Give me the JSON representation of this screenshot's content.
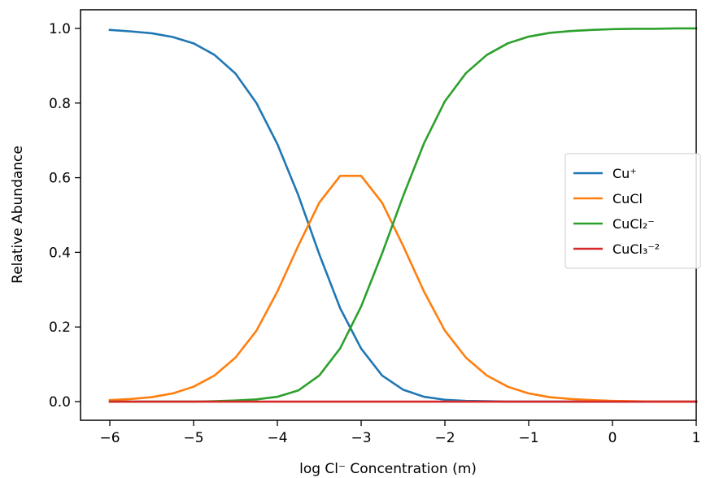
{
  "chart_data": {
    "type": "line",
    "title": "",
    "xlabel": "log Cl⁻ Concentration (m)",
    "ylabel": "Relative Abundance",
    "xlim": [
      -6.35,
      1.0
    ],
    "ylim": [
      -0.05,
      1.05
    ],
    "xticks": [
      -6,
      -5,
      -4,
      -3,
      -2,
      -1,
      0,
      1
    ],
    "xtick_labels": [
      "−6",
      "−5",
      "−4",
      "−3",
      "−2",
      "−1",
      "0",
      "1"
    ],
    "yticks": [
      0.0,
      0.2,
      0.4,
      0.6,
      0.8,
      1.0
    ],
    "ytick_labels": [
      "0.0",
      "0.2",
      "0.4",
      "0.6",
      "0.8",
      "1.0"
    ],
    "grid": false,
    "legend_position": "center-right",
    "x": [
      -6.0,
      -5.75,
      -5.5,
      -5.25,
      -5.0,
      -4.75,
      -4.5,
      -4.25,
      -4.0,
      -3.75,
      -3.5,
      -3.25,
      -3.0,
      -2.75,
      -2.5,
      -2.25,
      -2.0,
      -1.75,
      -1.5,
      -1.25,
      -1.0,
      -0.75,
      -0.5,
      -0.25,
      0.0,
      0.25,
      0.5,
      0.75,
      1.0
    ],
    "series": [
      {
        "name": "Cu⁺",
        "color": "#1f77b4",
        "values": [
          0.996,
          0.992,
          0.987,
          0.977,
          0.96,
          0.929,
          0.879,
          0.8,
          0.69,
          0.553,
          0.395,
          0.25,
          0.142,
          0.07,
          0.032,
          0.013,
          0.005,
          0.002,
          0.001,
          0.0,
          0.0,
          0.0,
          0.0,
          0.0,
          0.0,
          0.0,
          0.0,
          0.0,
          0.0
        ]
      },
      {
        "name": "CuCl",
        "color": "#ff7f0e",
        "values": [
          0.004,
          0.007,
          0.012,
          0.022,
          0.04,
          0.07,
          0.118,
          0.19,
          0.295,
          0.418,
          0.533,
          0.605,
          0.605,
          0.533,
          0.418,
          0.295,
          0.19,
          0.118,
          0.07,
          0.04,
          0.022,
          0.012,
          0.007,
          0.004,
          0.002,
          0.001,
          0.0,
          0.0,
          0.0
        ]
      },
      {
        "name": "CuCl₂⁻",
        "color": "#2ca02c",
        "values": [
          0.0,
          0.0,
          0.0,
          0.0,
          0.0,
          0.001,
          0.003,
          0.006,
          0.013,
          0.03,
          0.07,
          0.143,
          0.255,
          0.397,
          0.55,
          0.692,
          0.805,
          0.88,
          0.929,
          0.96,
          0.978,
          0.988,
          0.993,
          0.996,
          0.998,
          0.999,
          0.999,
          1.0,
          1.0
        ]
      },
      {
        "name": "CuCl₃⁻²",
        "color": "#d62728",
        "values": [
          0.0,
          0.0,
          0.0,
          0.0,
          0.0,
          0.0,
          0.0,
          0.0,
          0.0,
          0.0,
          0.0,
          0.0,
          0.0,
          0.0,
          0.0,
          0.0,
          0.0,
          0.0,
          0.0,
          0.0,
          0.0,
          0.0,
          0.0,
          0.0,
          0.0,
          0.0,
          0.0,
          0.0,
          0.0
        ]
      }
    ]
  }
}
